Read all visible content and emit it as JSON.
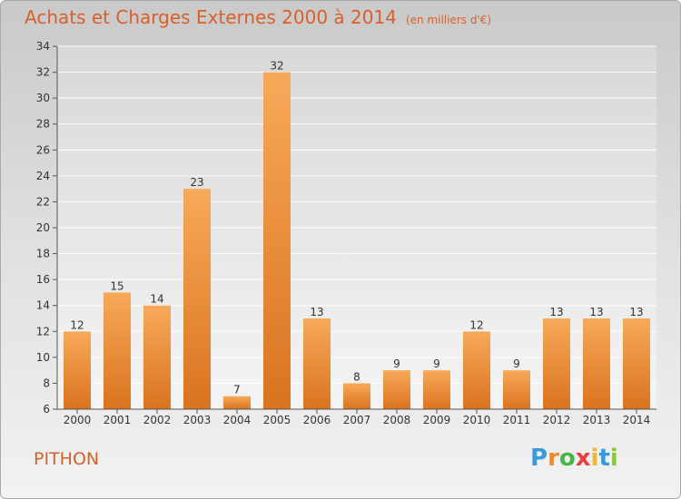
{
  "header": {
    "title": "Achats et Charges Externes 2000 à 2014",
    "subtitle": "(en milliers d'€)"
  },
  "footer": {
    "place": "PITHON",
    "logo_letters": [
      "P",
      "r",
      "o",
      "x",
      "i",
      "t",
      "i"
    ],
    "logo_colors": [
      "#3a9ad9",
      "#f08a24",
      "#45b649",
      "#e83e3e",
      "#f2b632",
      "#3a9ad9",
      "#8cc63f"
    ]
  },
  "colors": {
    "bar_light": "#f7a95a",
    "bar_dark": "#d9731f",
    "accent": "#d8602a"
  },
  "chart_data": {
    "type": "bar",
    "categories": [
      "2000",
      "2001",
      "2002",
      "2003",
      "2004",
      "2005",
      "2006",
      "2007",
      "2008",
      "2009",
      "2010",
      "2011",
      "2012",
      "2013",
      "2014"
    ],
    "values": [
      12,
      15,
      14,
      23,
      7,
      32,
      13,
      8,
      9,
      9,
      12,
      9,
      13,
      13,
      13
    ],
    "title": "Achats et Charges Externes 2000 à 2014",
    "ylim": [
      6,
      34
    ],
    "yticks": [
      6,
      8,
      10,
      12,
      14,
      16,
      18,
      20,
      22,
      24,
      26,
      28,
      30,
      32,
      34
    ],
    "grid": true,
    "data_labels": true
  }
}
